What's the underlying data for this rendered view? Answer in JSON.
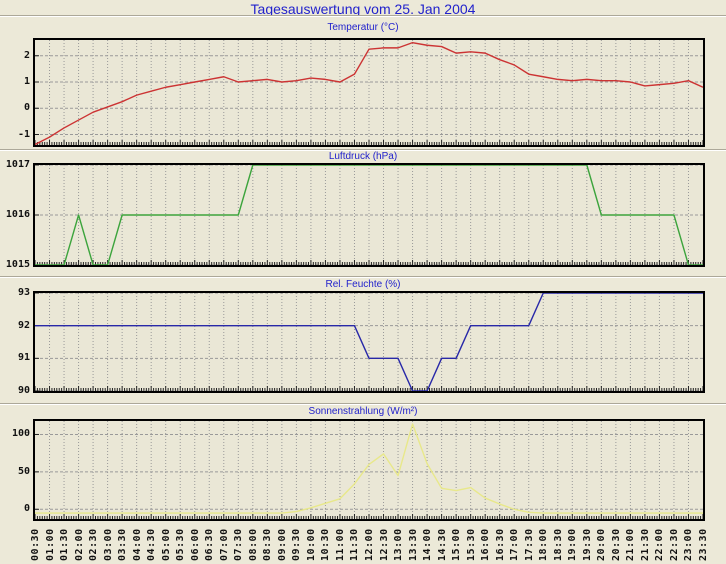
{
  "page": {
    "title": "Tagesauswertung vom 25. Jan 2004"
  },
  "colors": {
    "page_bg": "#ece9d8",
    "plot_bg": "#eae7d6",
    "grid": "#999999",
    "frame": "#000000",
    "title_blue": "#2222cc",
    "tick_text": "#111111"
  },
  "x_categories": [
    "00:30",
    "01:00",
    "01:30",
    "02:00",
    "02:30",
    "03:00",
    "03:30",
    "04:00",
    "04:30",
    "05:00",
    "05:30",
    "06:00",
    "06:30",
    "07:00",
    "07:30",
    "08:00",
    "08:30",
    "09:00",
    "09:30",
    "10:00",
    "10:30",
    "11:00",
    "11:30",
    "12:00",
    "12:30",
    "13:00",
    "13:30",
    "14:00",
    "14:30",
    "15:00",
    "15:30",
    "16:00",
    "16:30",
    "17:00",
    "17:30",
    "18:00",
    "18:30",
    "19:00",
    "19:30",
    "20:00",
    "20:30",
    "21:00",
    "21:30",
    "22:00",
    "22:30",
    "23:00",
    "23:30"
  ],
  "chart_data": [
    {
      "key": "temperatur",
      "type": "line",
      "title": "Temperatur (°C)",
      "color": "#cc3333",
      "ylim": [
        -1.4,
        2.6
      ],
      "yticks": [
        -1,
        0,
        1,
        2
      ],
      "grid": true,
      "values": [
        -1.38,
        -1.1,
        -0.75,
        -0.45,
        -0.15,
        0.05,
        0.25,
        0.5,
        0.65,
        0.8,
        0.9,
        1.0,
        1.1,
        1.2,
        1.0,
        1.05,
        1.1,
        1.0,
        1.05,
        1.15,
        1.1,
        1.0,
        1.3,
        2.25,
        2.3,
        2.3,
        2.5,
        2.4,
        2.35,
        2.1,
        2.15,
        2.1,
        1.85,
        1.65,
        1.3,
        1.2,
        1.1,
        1.05,
        1.1,
        1.05,
        1.05,
        1.0,
        0.85,
        0.9,
        0.95,
        1.05,
        0.8
      ]
    },
    {
      "key": "luftdruck",
      "type": "line",
      "title": "Luftdruck (hPa)",
      "color": "#3ca43c",
      "ylim": [
        1015,
        1017
      ],
      "yticks": [
        1015,
        1016,
        1017
      ],
      "grid": true,
      "values": [
        1015,
        1015,
        1015,
        1016,
        1015,
        1015,
        1016,
        1016,
        1016,
        1016,
        1016,
        1016,
        1016,
        1016,
        1016,
        1017,
        1017,
        1017,
        1017,
        1017,
        1017,
        1017,
        1017,
        1017,
        1017,
        1017,
        1017,
        1017,
        1017,
        1017,
        1017,
        1017,
        1017,
        1017,
        1017,
        1017,
        1017,
        1017,
        1017,
        1016,
        1016,
        1016,
        1016,
        1016,
        1016,
        1015,
        1015
      ]
    },
    {
      "key": "rel_feuchte",
      "type": "line",
      "title": "Rel. Feuchte (%)",
      "color": "#2828a8",
      "ylim": [
        90,
        93
      ],
      "yticks": [
        90,
        91,
        92,
        93
      ],
      "grid": true,
      "values": [
        92,
        92,
        92,
        92,
        92,
        92,
        92,
        92,
        92,
        92,
        92,
        92,
        92,
        92,
        92,
        92,
        92,
        92,
        92,
        92,
        92,
        92,
        92,
        91,
        91,
        91,
        90,
        90,
        91,
        91,
        92,
        92,
        92,
        92,
        92,
        93,
        93,
        93,
        93,
        93,
        93,
        93,
        93,
        93,
        93,
        93,
        93
      ]
    },
    {
      "key": "sonnenstrahlung",
      "type": "line",
      "title": "Sonnenstrahlung (W/m²)",
      "color": "#e8e88a",
      "ylim": [
        -13,
        118
      ],
      "yticks": [
        0,
        50,
        100
      ],
      "grid": true,
      "values": [
        -5,
        -5,
        -5,
        -5,
        -5,
        -5,
        -5,
        -5,
        -5,
        -5,
        -5,
        -5,
        -5,
        -5,
        -5,
        -5,
        -5,
        -5,
        -3,
        2,
        8,
        14,
        34,
        60,
        74,
        45,
        114,
        61,
        28,
        25,
        29,
        15,
        7,
        0,
        -4,
        -5,
        -5,
        -5,
        -5,
        -5,
        -5,
        -5,
        -5,
        -5,
        -5,
        -5,
        -5
      ]
    }
  ]
}
